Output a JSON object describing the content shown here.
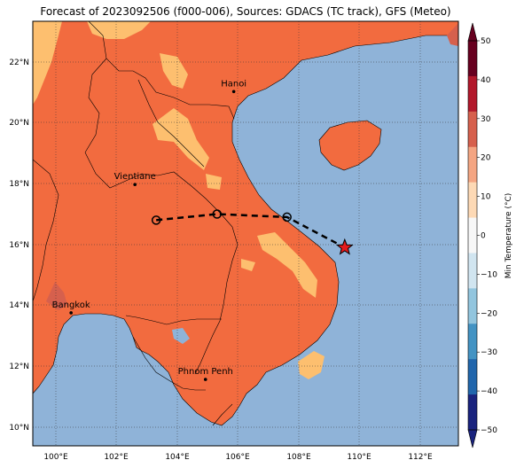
{
  "title": "Forecast of 2023092506 (f000-006), Sources: GDACS (TC track), GFS (Meteo)",
  "lon_ticks": [
    "100°E",
    "102°E",
    "104°E",
    "106°E",
    "108°E",
    "110°E",
    "112°E"
  ],
  "lat_ticks": [
    "22°N",
    "20°N",
    "18°N",
    "16°N",
    "14°N",
    "12°N",
    "10°N"
  ],
  "cities": [
    {
      "name": "Hanoi",
      "lon": 105.85,
      "lat": 21.03
    },
    {
      "name": "Vientiane",
      "lon": 102.6,
      "lat": 17.97
    },
    {
      "name": "Bangkok",
      "lon": 100.5,
      "lat": 13.75
    },
    {
      "name": "Phnom Penh",
      "lon": 104.92,
      "lat": 11.56
    }
  ],
  "track": {
    "points": [
      {
        "lon": 103.3,
        "lat": 16.8,
        "marker": "circle"
      },
      {
        "lon": 105.3,
        "lat": 17.0,
        "marker": "circle"
      },
      {
        "lon": 107.6,
        "lat": 16.9,
        "marker": "circle"
      },
      {
        "lon": 109.5,
        "lat": 15.9,
        "marker": "star"
      }
    ]
  },
  "colorbar": {
    "label": "Min Temperature (°C)",
    "ticks": [
      "50",
      "40",
      "30",
      "20",
      "10",
      "0",
      "−10",
      "−20",
      "−30",
      "−40",
      "−50"
    ],
    "colors": [
      "#67001f",
      "#b2182b",
      "#d6604d",
      "#f4a582",
      "#fdd9b5",
      "#f7f7f7",
      "#d1e5f0",
      "#92c5de",
      "#4393c3",
      "#2166ac",
      "#1a237e"
    ]
  },
  "colors": {
    "land": "#f26b3f",
    "sea": "#8fb3d8",
    "warm": "#fdbf6f",
    "hot": "#d6604d"
  }
}
